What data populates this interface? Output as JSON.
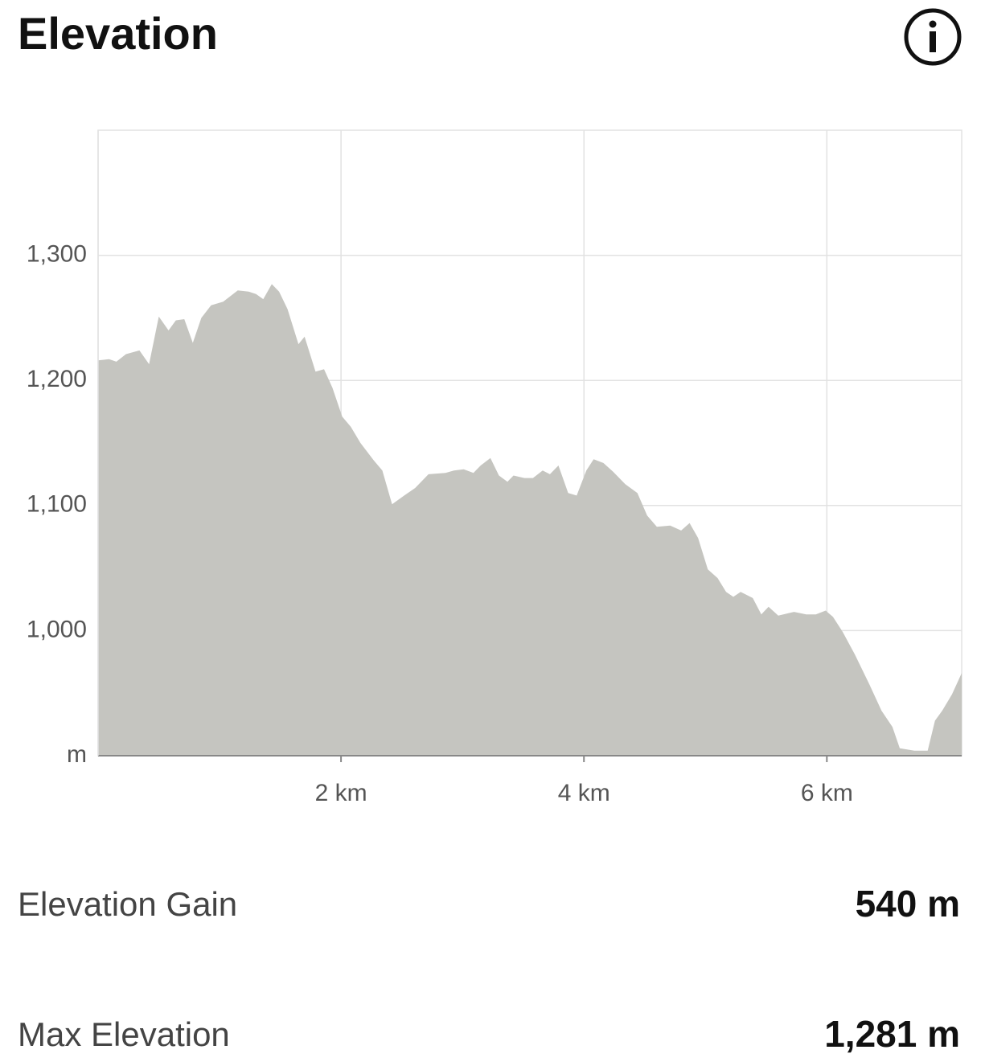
{
  "header": {
    "title": "Elevation"
  },
  "chart_data": {
    "type": "area",
    "color": "#c5c5c0",
    "grid": true,
    "x": [
      0,
      0.09,
      0.15,
      0.23,
      0.34,
      0.42,
      0.5,
      0.58,
      0.64,
      0.71,
      0.78,
      0.85,
      0.93,
      1.03,
      1.15,
      1.24,
      1.3,
      1.36,
      1.43,
      1.49,
      1.56,
      1.65,
      1.7,
      1.79,
      1.86,
      1.93,
      2.01,
      2.08,
      2.16,
      2.27,
      2.34,
      2.42,
      2.52,
      2.61,
      2.72,
      2.86,
      2.93,
      3.01,
      3.09,
      3.15,
      3.23,
      3.3,
      3.37,
      3.42,
      3.51,
      3.58,
      3.66,
      3.72,
      3.79,
      3.87,
      3.94,
      4.02,
      4.08,
      4.16,
      4.24,
      4.34,
      4.44,
      4.52,
      4.6,
      4.71,
      4.8,
      4.87,
      4.94,
      5.02,
      5.1,
      5.17,
      5.23,
      5.29,
      5.39,
      5.46,
      5.52,
      5.6,
      5.73,
      5.83,
      5.91,
      5.99,
      6.05,
      6.13,
      6.23,
      6.35,
      6.45,
      6.54,
      6.6,
      6.72,
      6.83,
      6.89,
      6.95,
      7.03,
      7.11
    ],
    "values": [
      1216,
      1217,
      1215,
      1221,
      1224,
      1213,
      1251,
      1240,
      1248,
      1249,
      1230,
      1250,
      1260,
      1263,
      1272,
      1271,
      1269,
      1265,
      1277,
      1271,
      1257,
      1229,
      1235,
      1207,
      1209,
      1194,
      1171,
      1163,
      1150,
      1136,
      1128,
      1101,
      1108,
      1114,
      1125,
      1126,
      1128,
      1129,
      1126,
      1132,
      1138,
      1124,
      1119,
      1124,
      1122,
      1122,
      1128,
      1125,
      1132,
      1110,
      1108,
      1128,
      1137,
      1134,
      1127,
      1117,
      1110,
      1092,
      1083,
      1084,
      1080,
      1086,
      1074,
      1049,
      1042,
      1031,
      1027,
      1031,
      1026,
      1013,
      1019,
      1012,
      1015,
      1013,
      1013,
      1016,
      1011,
      999,
      981,
      957,
      936,
      923,
      906,
      904,
      904,
      928,
      936,
      949,
      966
    ],
    "xlim": [
      0,
      7.11
    ],
    "xticks": [
      {
        "value": 2,
        "label": "2 km"
      },
      {
        "value": 4,
        "label": "4 km"
      },
      {
        "value": 6,
        "label": "6 km"
      }
    ],
    "ylim": [
      900,
      1400
    ],
    "yticks": [
      {
        "value": 900,
        "label": "m"
      },
      {
        "value": 1000,
        "label": "1,000"
      },
      {
        "value": 1100,
        "label": "1,100"
      },
      {
        "value": 1200,
        "label": "1,200"
      },
      {
        "value": 1300,
        "label": "1,300"
      }
    ]
  },
  "stats": [
    {
      "label": "Elevation Gain",
      "value": "540 m"
    },
    {
      "label": "Max Elevation",
      "value": "1,281 m"
    }
  ]
}
